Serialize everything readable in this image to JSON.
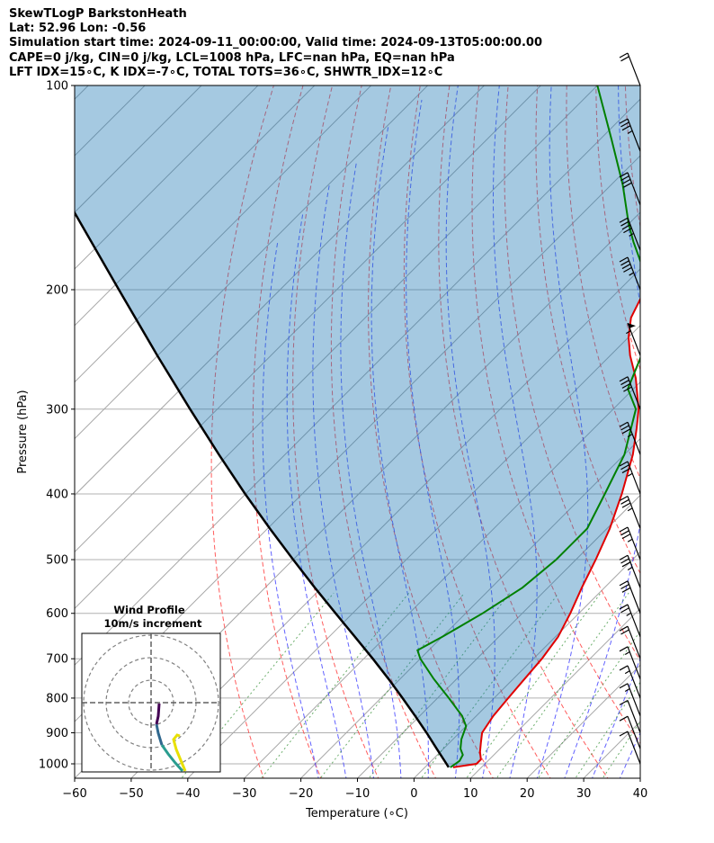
{
  "header": {
    "line1": "SkewTLogP BarkstonHeath",
    "line2": "Lat: 52.96   Lon: -0.56",
    "line3": "Simulation start time: 2024-09-11_00:00:00, Valid time: 2024-09-13T05:00:00.00",
    "line4": "CAPE=0 j/kg, CIN=0 j/kg, LCL=1008 hPa, LFC=nan hPa, EQ=nan hPa",
    "line5": "LFT IDX=15∘C, K IDX=-7∘C, TOTAL TOTS=36∘C, SHWTR_IDX=12∘C"
  },
  "chart_data": {
    "type": "line",
    "subtype": "skew-t log-p",
    "xlabel": "Temperature (∘C)",
    "ylabel": "Pressure (hPa)",
    "xlim": [
      -60,
      40
    ],
    "ylim": [
      1050,
      100
    ],
    "y_scale": "log",
    "x_ticks": [
      -60,
      -50,
      -40,
      -30,
      -20,
      -10,
      0,
      10,
      20,
      30,
      40
    ],
    "x_tick_labels": [
      "−60",
      "−50",
      "−40",
      "−30",
      "−20",
      "−10",
      "0",
      "10",
      "20",
      "30",
      "40"
    ],
    "y_ticks": [
      1000,
      900,
      800,
      700,
      600,
      500,
      400,
      300,
      200,
      100
    ],
    "y_tick_labels": [
      "1000",
      "900",
      "800",
      "700",
      "600",
      "500",
      "400",
      "300",
      "200",
      "100"
    ],
    "grid": true,
    "series": [
      {
        "color": "#e00000",
        "pressure": [
          1012,
          1000,
          985,
          960,
          930,
          900,
          850,
          800,
          750,
          700,
          650,
          600,
          550,
          500,
          450,
          400,
          350,
          320,
          300,
          270,
          250,
          235,
          220,
          200,
          180,
          160,
          140,
          125,
          110,
          100
        ],
        "temperature": [
          5,
          8.5,
          8.5,
          7,
          5.5,
          4,
          3,
          2.5,
          2,
          1.5,
          0.5,
          -1.5,
          -4,
          -6.5,
          -9.5,
          -13.5,
          -18.5,
          -22.5,
          -25.5,
          -31.5,
          -36.5,
          -40,
          -43,
          -45.5,
          -48,
          -54,
          -58,
          -61,
          -64,
          -67
        ]
      },
      {
        "color": "#008000",
        "pressure": [
          1012,
          990,
          970,
          950,
          920,
          880,
          850,
          800,
          750,
          700,
          680,
          650,
          600,
          550,
          500,
          450,
          400,
          350,
          300,
          280,
          250,
          220,
          200,
          185,
          170,
          160,
          140,
          120,
          100
        ],
        "temperature": [
          4.5,
          5,
          4.5,
          3,
          1.5,
          0,
          -2.5,
          -8,
          -14,
          -20,
          -22,
          -20,
          -17,
          -14.5,
          -13.5,
          -13.5,
          -16.5,
          -20,
          -26,
          -31,
          -34.5,
          -39.5,
          -44,
          -50,
          -56,
          -60,
          -68,
          -78,
          -90
        ]
      },
      {
        "color": "#000000",
        "pressure": [
          1012,
          1000,
          950,
          900,
          850,
          800,
          750,
          700,
          650,
          600,
          550,
          500,
          450,
          400,
          350,
          300,
          250,
          200,
          150,
          100
        ],
        "temperature": [
          4.2,
          3.2,
          -1.2,
          -5.8,
          -10.8,
          -16.2,
          -22,
          -28.4,
          -35.4,
          -43,
          -51.2,
          -60,
          -69.6,
          -80.1,
          -91.7,
          -104.8,
          -120.1,
          -138.5,
          -162.1,
          -195.6
        ]
      }
    ],
    "wind_barbs": {
      "pressure": [
        1000,
        950,
        900,
        850,
        800,
        750,
        700,
        650,
        600,
        550,
        500,
        450,
        400,
        350,
        300,
        250,
        200,
        175,
        150,
        125,
        100
      ],
      "speed_kt": [
        10,
        10,
        10,
        15,
        15,
        15,
        20,
        25,
        30,
        35,
        35,
        35,
        35,
        35,
        40,
        55,
        45,
        45,
        40,
        35,
        20
      ]
    },
    "inset": {
      "title": "Wind Profile",
      "subtitle": "10m/s increment"
    }
  }
}
